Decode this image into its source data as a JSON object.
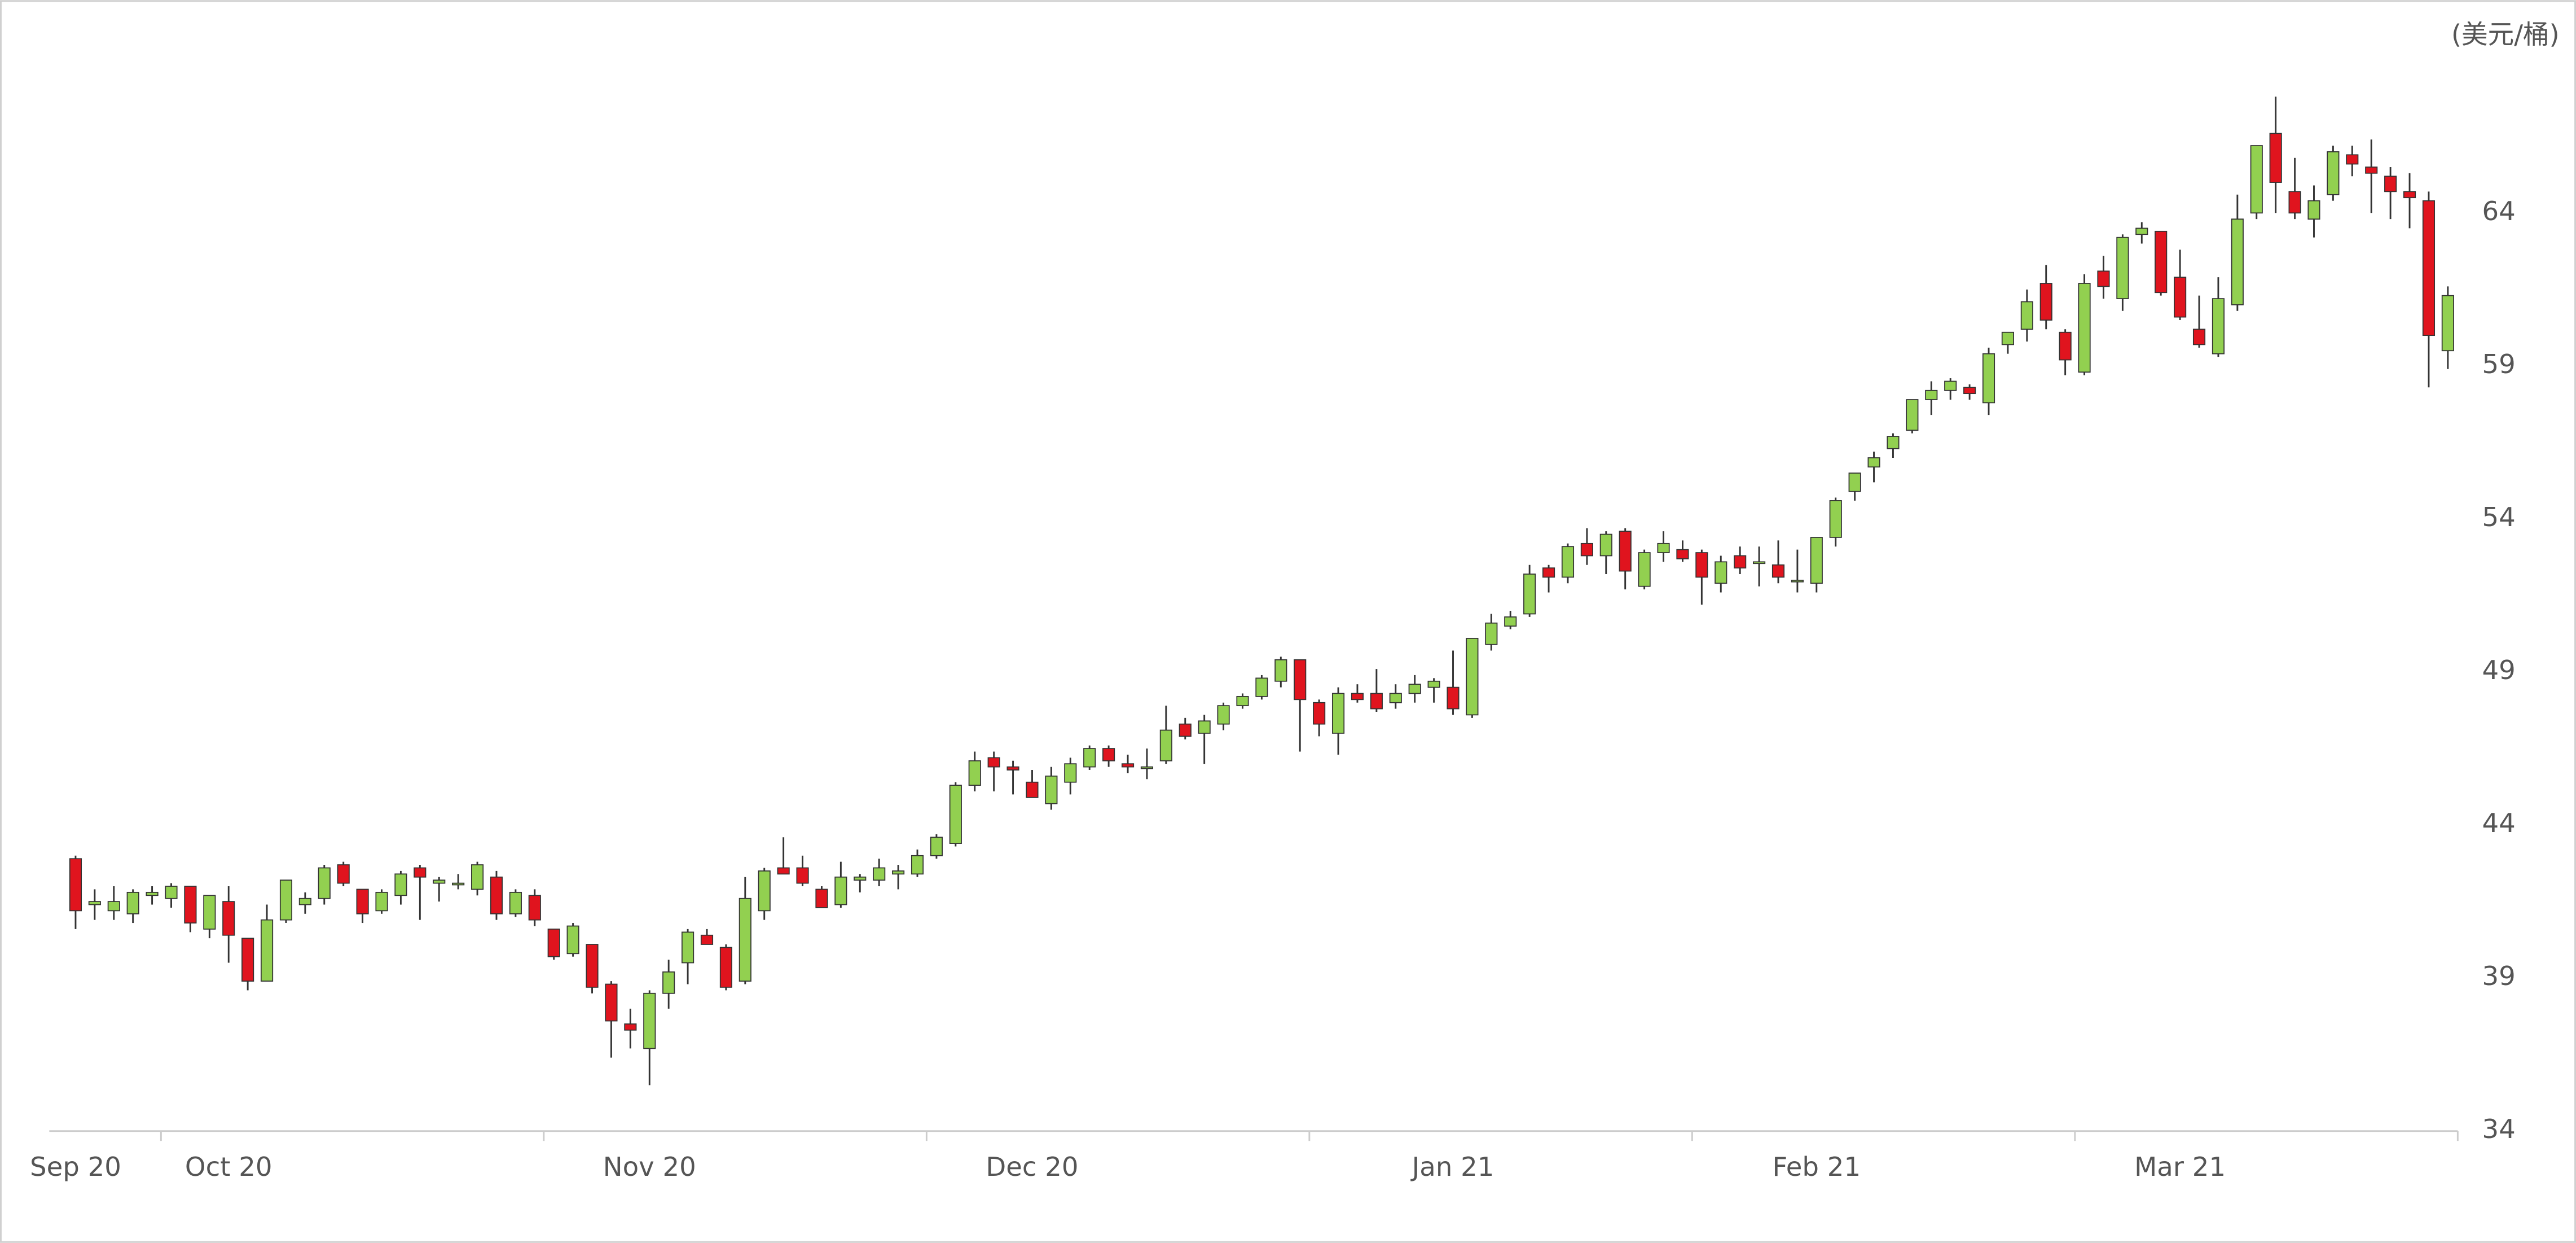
{
  "chart_data": {
    "type": "candlestick",
    "y_axis_label": "(美元/桶)",
    "categories": [
      "Sep 20",
      null,
      null,
      null,
      null,
      null,
      null,
      null,
      "Oct 20",
      null,
      null,
      null,
      null,
      null,
      null,
      null,
      null,
      null,
      null,
      null,
      null,
      null,
      null,
      null,
      null,
      null,
      null,
      null,
      null,
      null,
      "Nov 20",
      null,
      null,
      null,
      null,
      null,
      null,
      null,
      null,
      null,
      null,
      null,
      null,
      null,
      null,
      null,
      null,
      null,
      null,
      null,
      "Dec 20",
      null,
      null,
      null,
      null,
      null,
      null,
      null,
      null,
      null,
      null,
      null,
      null,
      null,
      null,
      null,
      null,
      null,
      null,
      null,
      null,
      null,
      "Jan 21",
      null,
      null,
      null,
      null,
      null,
      null,
      null,
      null,
      null,
      null,
      null,
      null,
      null,
      null,
      null,
      null,
      null,
      null,
      "Feb 21",
      null,
      null,
      null,
      null,
      null,
      null,
      null,
      null,
      null,
      null,
      null,
      null,
      null,
      null,
      null,
      null,
      null,
      null,
      "Mar 21",
      null,
      null,
      null,
      null,
      null,
      null,
      null,
      null,
      null,
      null,
      null,
      null,
      null,
      null
    ],
    "open": [
      42.9,
      41.4,
      41.2,
      41.1,
      41.7,
      41.6,
      42.0,
      40.6,
      41.5,
      40.3,
      38.9,
      40.9,
      41.4,
      41.6,
      42.7,
      41.9,
      41.2,
      41.7,
      42.6,
      42.1,
      42.1,
      41.9,
      42.3,
      41.1,
      41.7,
      40.6,
      39.8,
      40.1,
      38.8,
      37.5,
      36.7,
      38.5,
      39.5,
      40.4,
      40.0,
      38.9,
      41.2,
      42.6,
      42.6,
      41.9,
      41.4,
      42.2,
      42.2,
      42.4,
      42.4,
      43.0,
      43.4,
      45.3,
      46.2,
      45.9,
      45.4,
      44.7,
      45.4,
      45.9,
      46.5,
      46.0,
      45.9,
      46.1,
      47.3,
      47.0,
      47.3,
      47.9,
      48.2,
      48.7,
      49.4,
      48.0,
      47.0,
      48.3,
      48.3,
      48.0,
      48.3,
      48.5,
      48.5,
      47.6,
      49.9,
      50.5,
      50.9,
      52.4,
      52.1,
      53.2,
      52.8,
      53.6,
      51.8,
      52.9,
      53.0,
      52.9,
      51.9,
      52.8,
      52.6,
      52.5,
      52.0,
      51.9,
      53.4,
      54.9,
      55.7,
      56.3,
      56.9,
      57.9,
      58.2,
      58.3,
      57.8,
      59.7,
      60.2,
      61.7,
      60.1,
      58.8,
      62.1,
      61.2,
      63.3,
      63.4,
      61.9,
      60.2,
      59.4,
      61.0,
      64.0,
      66.6,
      64.7,
      63.8,
      64.6,
      65.9,
      65.5,
      65.2,
      64.7,
      64.4,
      59.5
    ],
    "high": [
      43.0,
      41.9,
      42.0,
      41.9,
      42.0,
      42.1,
      42.0,
      41.7,
      42.0,
      40.3,
      41.4,
      42.2,
      41.8,
      42.7,
      42.8,
      41.9,
      41.9,
      42.5,
      42.7,
      42.3,
      42.4,
      42.8,
      42.5,
      41.9,
      41.9,
      40.6,
      40.8,
      40.1,
      38.9,
      38.0,
      38.6,
      39.6,
      40.6,
      40.6,
      40.1,
      42.3,
      42.6,
      43.6,
      43.0,
      42.0,
      42.8,
      42.4,
      42.9,
      42.7,
      43.2,
      43.7,
      45.4,
      46.4,
      46.4,
      46.1,
      45.8,
      45.9,
      46.2,
      46.6,
      46.6,
      46.3,
      46.5,
      47.9,
      47.5,
      47.6,
      48.0,
      48.3,
      48.9,
      49.5,
      49.4,
      48.1,
      48.5,
      48.6,
      49.1,
      48.6,
      48.9,
      48.8,
      49.7,
      50.1,
      50.9,
      51.0,
      52.5,
      52.5,
      53.2,
      53.7,
      53.6,
      53.7,
      53.0,
      53.6,
      53.3,
      53.0,
      52.8,
      53.1,
      53.1,
      53.3,
      53.0,
      53.4,
      54.7,
      55.5,
      56.2,
      56.8,
      57.9,
      58.5,
      58.6,
      58.4,
      59.6,
      60.1,
      61.5,
      62.3,
      60.2,
      62.0,
      62.6,
      63.3,
      63.7,
      63.4,
      62.8,
      61.3,
      61.9,
      64.6,
      66.2,
      67.8,
      65.8,
      64.9,
      66.2,
      66.2,
      66.4,
      65.5,
      65.3,
      64.7,
      61.6
    ],
    "low": [
      40.6,
      40.9,
      40.9,
      40.8,
      41.4,
      41.3,
      40.5,
      40.3,
      39.5,
      38.6,
      38.9,
      40.8,
      41.1,
      41.4,
      42.0,
      40.8,
      41.1,
      41.4,
      40.9,
      41.5,
      41.9,
      41.7,
      40.9,
      41.0,
      40.7,
      39.6,
      39.7,
      38.5,
      36.4,
      36.7,
      35.5,
      38.0,
      38.8,
      40.1,
      38.6,
      38.8,
      40.9,
      42.4,
      42.0,
      41.3,
      41.3,
      41.8,
      42.0,
      41.9,
      42.3,
      42.9,
      43.3,
      45.1,
      45.1,
      45.0,
      44.9,
      44.5,
      45.0,
      45.8,
      45.9,
      45.7,
      45.5,
      46.0,
      46.8,
      46.0,
      47.1,
      47.8,
      48.1,
      48.5,
      46.4,
      46.9,
      46.3,
      48.0,
      47.7,
      47.8,
      48.0,
      48.0,
      47.6,
      47.5,
      49.7,
      50.4,
      50.8,
      51.6,
      51.9,
      52.5,
      52.2,
      51.7,
      51.7,
      52.6,
      52.6,
      51.2,
      51.6,
      52.2,
      51.8,
      51.9,
      51.6,
      51.6,
      53.1,
      54.6,
      55.2,
      56.0,
      56.8,
      57.4,
      57.9,
      57.9,
      57.4,
      59.4,
      59.8,
      60.2,
      58.7,
      58.7,
      61.2,
      60.8,
      63.0,
      61.3,
      60.5,
      59.6,
      59.3,
      60.8,
      63.8,
      64.0,
      63.8,
      63.2,
      64.4,
      65.2,
      64.0,
      63.8,
      63.5,
      58.3,
      58.9
    ],
    "close": [
      41.2,
      41.5,
      41.5,
      41.8,
      41.8,
      42.0,
      40.8,
      41.7,
      40.4,
      38.9,
      40.9,
      42.2,
      41.6,
      42.6,
      42.1,
      41.1,
      41.8,
      42.4,
      42.3,
      42.2,
      42.1,
      42.7,
      41.1,
      41.8,
      40.9,
      39.7,
      40.7,
      38.7,
      37.6,
      37.3,
      38.5,
      39.2,
      40.5,
      40.1,
      38.7,
      41.6,
      42.5,
      42.4,
      42.1,
      41.3,
      42.3,
      42.3,
      42.6,
      42.5,
      43.0,
      43.6,
      45.3,
      46.1,
      45.9,
      45.8,
      44.9,
      45.6,
      46.0,
      46.5,
      46.1,
      45.9,
      45.9,
      47.1,
      46.9,
      47.4,
      47.9,
      48.2,
      48.8,
      49.4,
      48.1,
      47.3,
      48.3,
      48.1,
      47.8,
      48.3,
      48.6,
      48.7,
      47.8,
      50.1,
      50.6,
      50.8,
      52.2,
      52.1,
      53.1,
      52.8,
      53.5,
      52.3,
      52.9,
      53.2,
      52.7,
      52.1,
      52.6,
      52.4,
      52.6,
      52.1,
      52.0,
      53.4,
      54.6,
      55.5,
      56.0,
      56.7,
      57.9,
      58.2,
      58.5,
      58.1,
      59.4,
      60.1,
      61.1,
      60.5,
      59.2,
      61.7,
      61.6,
      63.2,
      63.5,
      61.4,
      60.6,
      59.7,
      61.2,
      63.8,
      66.2,
      65.0,
      64.0,
      64.4,
      66.0,
      65.6,
      65.3,
      64.7,
      64.5,
      60.0,
      61.3
    ],
    "up_color": "#92d050",
    "down_color": "#e0141e",
    "wick_color": "#333333",
    "ylim": [
      34,
      68
    ],
    "yticks": [
      34,
      39,
      44,
      49,
      54,
      59,
      64
    ],
    "grid": false
  }
}
